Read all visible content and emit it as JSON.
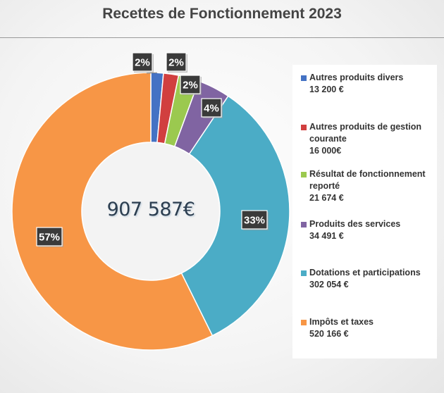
{
  "chart_data": {
    "type": "pie",
    "title": "Recettes de Fonctionnement 2023",
    "center_label": "907 587€",
    "donut": true,
    "legend_position": "right",
    "slices": [
      {
        "name": "Autres produits divers",
        "value_label": "13 200 €",
        "value": 13200,
        "percent_label": "2%",
        "color": "#4472c4"
      },
      {
        "name": "Autres produits de gestion courante",
        "value_label": "16 000€",
        "value": 16000,
        "percent_label": "2%",
        "color": "#d13f3f"
      },
      {
        "name": "Résultat de fonctionnement reporté",
        "value_label": "21 674 €",
        "value": 21674,
        "percent_label": "2%",
        "color": "#9bc94f"
      },
      {
        "name": "Produits des services",
        "value_label": "34 491 €",
        "value": 34491,
        "percent_label": "4%",
        "color": "#8064a2"
      },
      {
        "name": "Dotations et participations",
        "value_label": "302 054 €",
        "value": 302054,
        "percent_label": "33%",
        "color": "#4bacc6"
      },
      {
        "name": "Impôts et taxes",
        "value_label": "520 166 €",
        "value": 520166,
        "percent_label": "57%",
        "color": "#f79646"
      }
    ]
  }
}
